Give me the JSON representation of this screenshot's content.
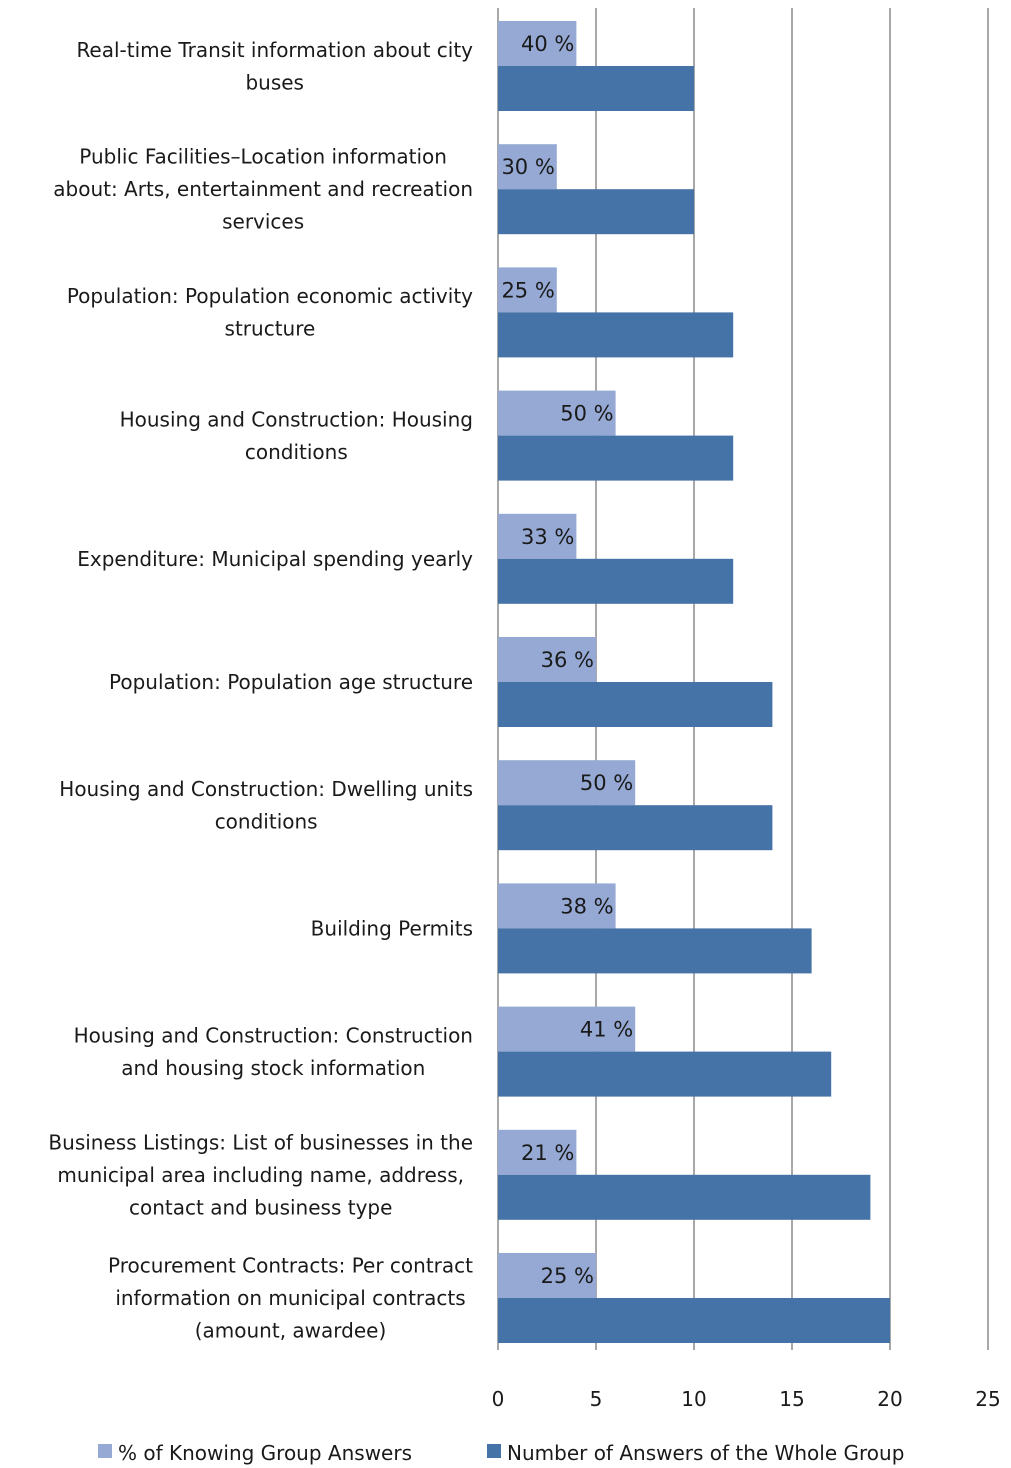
{
  "chart_data": {
    "type": "bar",
    "orientation": "horizontal",
    "categories": [
      [
        "Real-time Transit information about city",
        "buses"
      ],
      [
        "Public Facilities–Location information",
        "about: Arts, entertainment and recreation",
        "services"
      ],
      [
        "Population: Population economic activity",
        "structure"
      ],
      [
        "Housing and Construction: Housing",
        "conditions"
      ],
      [
        "Expenditure: Municipal spending yearly"
      ],
      [
        "Population: Population age structure"
      ],
      [
        "Housing and Construction: Dwelling units",
        "conditions"
      ],
      [
        "Building Permits"
      ],
      [
        "Housing and Construction: Construction",
        "and housing stock information"
      ],
      [
        "Business Listings: List of businesses in the",
        "municipal area including name, address,",
        "contact and business type"
      ],
      [
        "Procurement Contracts: Per contract",
        "information on municipal contracts",
        "(amount, awardee)"
      ]
    ],
    "series": [
      {
        "name": "% of Knowing Group Answers",
        "color": "#95a9d4",
        "values": [
          4,
          3,
          3,
          6,
          4,
          5,
          7,
          6,
          7,
          4,
          5
        ],
        "data_labels": [
          "40 %",
          "30 %",
          "25 %",
          "50 %",
          "33 %",
          "36 %",
          "50 %",
          "38 %",
          "41 %",
          "21 %",
          "25 %"
        ]
      },
      {
        "name": "Number of Answers of the Whole Group",
        "color": "#4573a7",
        "values": [
          10,
          10,
          12,
          12,
          12,
          14,
          14,
          16,
          17,
          19,
          20
        ]
      }
    ],
    "xlim": [
      0,
      25
    ],
    "xticks": [
      "0",
      "5",
      "10",
      "15",
      "20",
      "25"
    ],
    "grid": true,
    "legend_position": "bottom",
    "gridline_color": "#8c8c8c"
  }
}
